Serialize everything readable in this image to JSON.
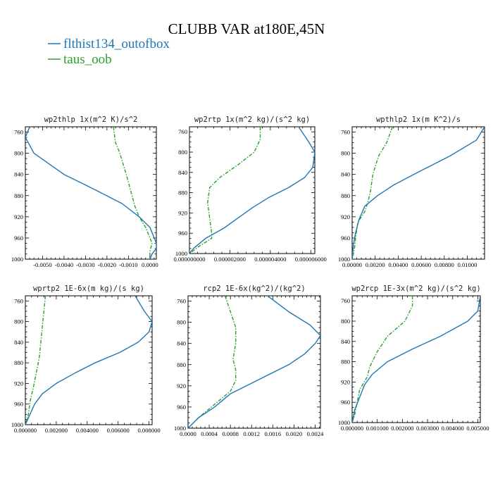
{
  "figure": {
    "title": "CLUBB VAR at180E,45N",
    "legend": [
      {
        "label": "flthist134_outofbox",
        "color": "#1f77b4",
        "dash": "solid"
      },
      {
        "label": "taus_oob",
        "color": "#2ca02c",
        "dash": "dashdot"
      }
    ]
  },
  "chart_data": [
    {
      "type": "line",
      "title": "wp2thlp  1x(m^2 K)/s^2",
      "xlim": [
        -0.0058,
        0.0003
      ],
      "ylim": [
        1000,
        750
      ],
      "xticks": [
        -0.005,
        -0.004,
        -0.003,
        -0.002,
        -0.001,
        0.0
      ],
      "xtick_labels": [
        "-0.0050",
        "-0.0040",
        "-0.0030",
        "-0.0020",
        "-0.0010",
        "0.0000"
      ],
      "yticks": [
        760,
        800,
        840,
        880,
        920,
        960,
        1000
      ],
      "ytick_labels": [
        "760",
        "800",
        "840",
        "880",
        "920",
        "960",
        "1000"
      ],
      "series": [
        {
          "name": "flthist134_outofbox",
          "x": [
            -0.0056,
            -0.0058,
            -0.0054,
            -0.004,
            -0.0025,
            -0.0013,
            -0.0005,
            0.0,
            0.0002,
            0.0003,
            0.0003,
            0.0001,
            0.0
          ],
          "y": [
            750,
            770,
            800,
            840,
            870,
            895,
            920,
            940,
            960,
            970,
            980,
            990,
            1000
          ]
        },
        {
          "name": "taus_oob",
          "x": [
            -0.0017,
            -0.0016,
            -0.0014,
            -0.0011,
            -0.0009,
            -0.0007,
            -0.0005,
            -0.0002,
            0.0,
            0.0001,
            0.0,
            0.0
          ],
          "y": [
            750,
            780,
            800,
            840,
            870,
            900,
            920,
            940,
            960,
            970,
            985,
            1000
          ]
        }
      ]
    },
    {
      "type": "line",
      "title": "wp2rtp  1x(m^2 kg)/(s^2 kg)",
      "xlim": [
        0.0,
        6.2e-06
      ],
      "ylim": [
        1000,
        750
      ],
      "xticks": [
        0.0,
        2e-06,
        4e-06,
        6e-06
      ],
      "xtick_labels": [
        "0.000000000",
        "0.000002000",
        "0.000004000",
        "0.000006000"
      ],
      "yticks": [
        760,
        800,
        840,
        880,
        920,
        960,
        1000
      ],
      "ytick_labels": [
        "760",
        "800",
        "840",
        "880",
        "920",
        "960",
        "1000"
      ],
      "series": [
        {
          "name": "flthist134_outofbox",
          "x": [
            5.4e-06,
            5.9e-06,
            6.2e-06,
            6.1e-06,
            5.7e-06,
            4.9e-06,
            3.9e-06,
            3.1e-06,
            2.4e-06,
            1.7e-06,
            8e-07,
            2e-07,
            0.0
          ],
          "y": [
            750,
            780,
            800,
            830,
            850,
            870,
            890,
            910,
            930,
            950,
            970,
            990,
            1000
          ]
        },
        {
          "name": "taus_oob",
          "x": [
            3.5e-06,
            3.5e-06,
            3.2e-06,
            2.4e-06,
            1.5e-06,
            1e-06,
            9e-07,
            1e-06,
            1.1e-06,
            1.1e-06,
            5e-07,
            0.0
          ],
          "y": [
            750,
            775,
            800,
            825,
            850,
            870,
            900,
            930,
            960,
            970,
            985,
            1000
          ]
        }
      ]
    },
    {
      "type": "line",
      "title": "wpthlp2  1x(m K^2)/s",
      "xlim": [
        0.0,
        0.0115
      ],
      "ylim": [
        1000,
        750
      ],
      "xticks": [
        0.0,
        0.002,
        0.004,
        0.006,
        0.008,
        0.01
      ],
      "xtick_labels": [
        "0.00000",
        "0.00200",
        "0.00400",
        "0.00600",
        "0.00800",
        "0.01000"
      ],
      "yticks": [
        760,
        800,
        840,
        880,
        920,
        960,
        1000
      ],
      "ytick_labels": [
        "760",
        "800",
        "840",
        "880",
        "920",
        "960",
        "1000"
      ],
      "series": [
        {
          "name": "flthist134_outofbox",
          "x": [
            0.0115,
            0.0108,
            0.0085,
            0.0058,
            0.0036,
            0.0022,
            0.0011,
            0.0006,
            0.0003,
            0.0001,
            0.0
          ],
          "y": [
            750,
            775,
            805,
            835,
            860,
            880,
            900,
            925,
            950,
            975,
            1000
          ]
        },
        {
          "name": "taus_oob",
          "x": [
            0.0035,
            0.003,
            0.0023,
            0.0018,
            0.0016,
            0.0014,
            0.0011,
            0.0005,
            0.0003,
            0.0002,
            0.0
          ],
          "y": [
            750,
            780,
            805,
            840,
            870,
            890,
            910,
            930,
            960,
            980,
            1000
          ]
        }
      ]
    },
    {
      "type": "line",
      "title": "wprtp2  1E-6x(m kg)/(s kg)",
      "xlim": [
        0.0,
        0.0082
      ],
      "ylim": [
        1000,
        750
      ],
      "xticks": [
        0.0,
        0.002,
        0.004,
        0.006,
        0.008
      ],
      "xtick_labels": [
        "0.000000",
        "0.002000",
        "0.004000",
        "0.006000",
        "0.008000"
      ],
      "yticks": [
        760,
        800,
        840,
        880,
        920,
        960,
        1000
      ],
      "ytick_labels": [
        "760",
        "800",
        "840",
        "880",
        "920",
        "960",
        "1000"
      ],
      "series": [
        {
          "name": "flthist134_outofbox",
          "x": [
            0.0071,
            0.0077,
            0.0082,
            0.008,
            0.0073,
            0.0061,
            0.0045,
            0.0032,
            0.002,
            0.0011,
            0.0006,
            0.0003,
            0.0
          ],
          "y": [
            750,
            780,
            800,
            820,
            840,
            860,
            880,
            900,
            920,
            940,
            960,
            980,
            1000
          ]
        },
        {
          "name": "taus_oob",
          "x": [
            0.0013,
            0.0012,
            0.0011,
            0.001,
            0.0009,
            0.0007,
            0.0005,
            0.0003,
            0.0002,
            0.0
          ],
          "y": [
            750,
            780,
            810,
            840,
            870,
            900,
            930,
            955,
            980,
            1000
          ]
        }
      ]
    },
    {
      "type": "line",
      "title": "rcp2  1E-6x(kg^2)/(kg^2)",
      "xlim": [
        0.0,
        0.0025
      ],
      "ylim": [
        1000,
        750
      ],
      "xticks": [
        0.0,
        0.0004,
        0.0008,
        0.0012,
        0.0016,
        0.002,
        0.0024
      ],
      "xtick_labels": [
        "0.0000",
        "0.0004",
        "0.0008",
        "0.0012",
        "0.0016",
        "0.0020",
        "0.0024"
      ],
      "yticks": [
        760,
        800,
        840,
        880,
        920,
        960,
        1000
      ],
      "ytick_labels": [
        "760",
        "800",
        "840",
        "880",
        "920",
        "960",
        "1000"
      ],
      "series": [
        {
          "name": "flthist134_outofbox",
          "x": [
            0.0015,
            0.0019,
            0.0023,
            0.0025,
            0.0024,
            0.0022,
            0.0019,
            0.0015,
            0.0012,
            0.0008,
            0.0005,
            0.0002,
            0.0
          ],
          "y": [
            750,
            780,
            805,
            825,
            840,
            860,
            880,
            900,
            915,
            935,
            960,
            980,
            1000
          ]
        },
        {
          "name": "taus_oob",
          "x": [
            0.0007,
            0.0008,
            0.0009,
            0.0009,
            0.00085,
            0.0009,
            0.0009,
            0.0008,
            0.0005,
            0.0002,
            0.0
          ],
          "y": [
            750,
            780,
            810,
            840,
            870,
            890,
            910,
            930,
            955,
            980,
            1000
          ]
        }
      ]
    },
    {
      "type": "line",
      "title": "wp2rcp  1E-3x(m^2 kg)/(s^2 kg)",
      "xlim": [
        0.0,
        0.0051
      ],
      "ylim": [
        1000,
        750
      ],
      "xticks": [
        0.0,
        0.001,
        0.002,
        0.003,
        0.004,
        0.005
      ],
      "xtick_labels": [
        "0.000000",
        "0.001000",
        "0.002000",
        "0.003000",
        "0.004000",
        "0.005000"
      ],
      "yticks": [
        760,
        800,
        840,
        880,
        920,
        960,
        1000
      ],
      "ytick_labels": [
        "760",
        "800",
        "840",
        "880",
        "920",
        "960",
        "1000"
      ],
      "series": [
        {
          "name": "flthist134_outofbox",
          "x": [
            0.0051,
            0.005,
            0.0046,
            0.0035,
            0.0024,
            0.0014,
            0.0008,
            0.0005,
            0.0003,
            0.0001,
            0.0
          ],
          "y": [
            750,
            780,
            800,
            830,
            855,
            880,
            905,
            925,
            950,
            975,
            1000
          ]
        },
        {
          "name": "taus_oob",
          "x": [
            0.0024,
            0.0024,
            0.0021,
            0.0014,
            0.001,
            0.0007,
            0.0006,
            0.0003,
            0.0002,
            0.0001,
            0.0
          ],
          "y": [
            750,
            770,
            800,
            830,
            860,
            890,
            910,
            935,
            960,
            985,
            1000
          ]
        }
      ]
    }
  ]
}
